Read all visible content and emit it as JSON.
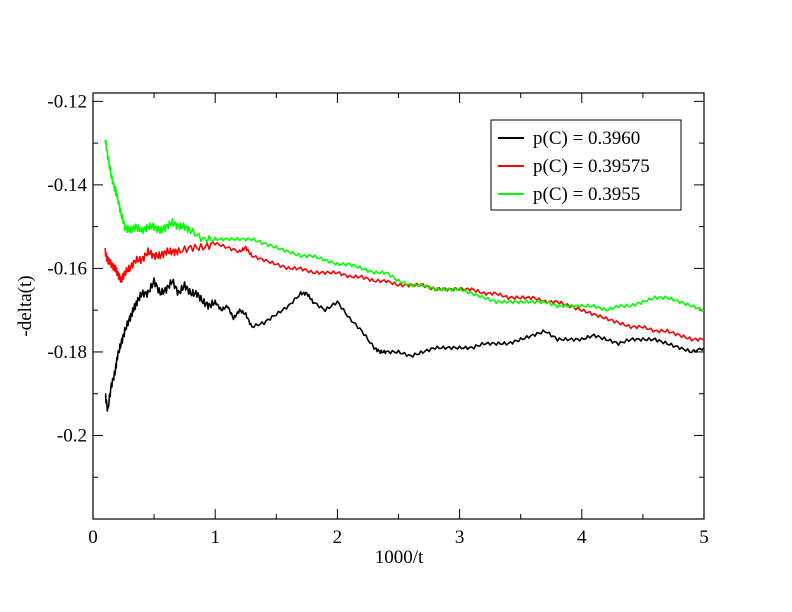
{
  "chart_data": {
    "type": "line",
    "title": "",
    "xlabel": "1000/t",
    "ylabel": "-delta(t)",
    "xlim": [
      0,
      5
    ],
    "ylim": [
      -0.22,
      -0.118
    ],
    "xticks": [
      0,
      1,
      2,
      3,
      4,
      5
    ],
    "xtick_labels": [
      "0",
      "1",
      "2",
      "3",
      "4",
      "5"
    ],
    "yticks": [
      -0.12,
      -0.14,
      -0.16,
      -0.18,
      -0.2
    ],
    "ytick_labels": [
      "-0.12",
      "-0.14",
      "-0.16",
      "-0.18",
      "-0.2"
    ],
    "grid": false,
    "legend_position": "top-right",
    "series": [
      {
        "name": "p(C) = 0.3960",
        "color": "#000000",
        "x": [
          0.1,
          0.12,
          0.15,
          0.18,
          0.2,
          0.23,
          0.26,
          0.3,
          0.33,
          0.36,
          0.4,
          0.45,
          0.5,
          0.55,
          0.6,
          0.65,
          0.7,
          0.75,
          0.8,
          0.85,
          0.9,
          0.95,
          1.0,
          1.05,
          1.1,
          1.15,
          1.2,
          1.25,
          1.3,
          1.4,
          1.5,
          1.6,
          1.7,
          1.75,
          1.8,
          1.9,
          2.0,
          2.1,
          2.2,
          2.3,
          2.35,
          2.4,
          2.5,
          2.6,
          2.7,
          2.8,
          2.9,
          3.0,
          3.1,
          3.2,
          3.3,
          3.4,
          3.5,
          3.6,
          3.7,
          3.8,
          3.9,
          4.0,
          4.1,
          4.2,
          4.3,
          4.4,
          4.5,
          4.6,
          4.7,
          4.8,
          4.9,
          5.0
        ],
        "values": [
          -0.19,
          -0.194,
          -0.188,
          -0.185,
          -0.181,
          -0.178,
          -0.175,
          -0.172,
          -0.17,
          -0.168,
          -0.166,
          -0.166,
          -0.163,
          -0.166,
          -0.165,
          -0.163,
          -0.166,
          -0.164,
          -0.166,
          -0.166,
          -0.168,
          -0.169,
          -0.168,
          -0.17,
          -0.169,
          -0.172,
          -0.17,
          -0.171,
          -0.174,
          -0.173,
          -0.171,
          -0.169,
          -0.166,
          -0.166,
          -0.168,
          -0.17,
          -0.168,
          -0.172,
          -0.175,
          -0.179,
          -0.18,
          -0.18,
          -0.18,
          -0.181,
          -0.18,
          -0.179,
          -0.179,
          -0.179,
          -0.179,
          -0.178,
          -0.178,
          -0.178,
          -0.177,
          -0.176,
          -0.175,
          -0.177,
          -0.177,
          -0.177,
          -0.176,
          -0.177,
          -0.178,
          -0.177,
          -0.177,
          -0.177,
          -0.178,
          -0.179,
          -0.18,
          -0.179
        ]
      },
      {
        "name": "p(C) = 0.39575",
        "color": "#ff0000",
        "x": [
          0.1,
          0.12,
          0.15,
          0.18,
          0.2,
          0.23,
          0.26,
          0.3,
          0.35,
          0.4,
          0.45,
          0.5,
          0.55,
          0.6,
          0.65,
          0.7,
          0.8,
          0.9,
          1.0,
          1.1,
          1.2,
          1.25,
          1.3,
          1.4,
          1.5,
          1.6,
          1.7,
          1.8,
          1.9,
          2.0,
          2.1,
          2.2,
          2.3,
          2.4,
          2.5,
          2.6,
          2.7,
          2.8,
          2.9,
          3.0,
          3.1,
          3.2,
          3.3,
          3.4,
          3.5,
          3.6,
          3.7,
          3.8,
          3.9,
          4.0,
          4.1,
          4.2,
          4.3,
          4.4,
          4.5,
          4.6,
          4.7,
          4.8,
          4.9,
          5.0
        ],
        "values": [
          -0.156,
          -0.158,
          -0.159,
          -0.16,
          -0.161,
          -0.163,
          -0.161,
          -0.16,
          -0.158,
          -0.158,
          -0.156,
          -0.157,
          -0.157,
          -0.156,
          -0.156,
          -0.156,
          -0.155,
          -0.155,
          -0.154,
          -0.155,
          -0.156,
          -0.155,
          -0.157,
          -0.158,
          -0.159,
          -0.16,
          -0.16,
          -0.161,
          -0.161,
          -0.161,
          -0.162,
          -0.162,
          -0.163,
          -0.163,
          -0.164,
          -0.164,
          -0.164,
          -0.165,
          -0.165,
          -0.165,
          -0.165,
          -0.166,
          -0.166,
          -0.167,
          -0.167,
          -0.167,
          -0.168,
          -0.168,
          -0.169,
          -0.17,
          -0.171,
          -0.172,
          -0.173,
          -0.174,
          -0.174,
          -0.175,
          -0.175,
          -0.176,
          -0.177,
          -0.177
        ]
      },
      {
        "name": "p(C) = 0.3955",
        "color": "#00ff00",
        "x": [
          0.1,
          0.12,
          0.15,
          0.18,
          0.2,
          0.23,
          0.26,
          0.3,
          0.35,
          0.4,
          0.45,
          0.5,
          0.55,
          0.6,
          0.65,
          0.7,
          0.75,
          0.8,
          0.9,
          1.0,
          1.1,
          1.2,
          1.3,
          1.4,
          1.5,
          1.6,
          1.7,
          1.8,
          1.9,
          2.0,
          2.1,
          2.2,
          2.3,
          2.4,
          2.5,
          2.6,
          2.7,
          2.8,
          2.9,
          3.0,
          3.1,
          3.2,
          3.3,
          3.4,
          3.5,
          3.6,
          3.7,
          3.8,
          3.9,
          4.0,
          4.1,
          4.2,
          4.3,
          4.4,
          4.5,
          4.6,
          4.7,
          4.8,
          4.9,
          5.0
        ],
        "values": [
          -0.129,
          -0.133,
          -0.138,
          -0.141,
          -0.143,
          -0.147,
          -0.15,
          -0.151,
          -0.15,
          -0.151,
          -0.15,
          -0.15,
          -0.151,
          -0.15,
          -0.149,
          -0.15,
          -0.15,
          -0.151,
          -0.153,
          -0.153,
          -0.153,
          -0.153,
          -0.153,
          -0.154,
          -0.155,
          -0.156,
          -0.157,
          -0.157,
          -0.158,
          -0.159,
          -0.159,
          -0.16,
          -0.161,
          -0.161,
          -0.163,
          -0.164,
          -0.164,
          -0.165,
          -0.165,
          -0.165,
          -0.166,
          -0.167,
          -0.168,
          -0.168,
          -0.168,
          -0.168,
          -0.168,
          -0.169,
          -0.169,
          -0.169,
          -0.169,
          -0.17,
          -0.169,
          -0.169,
          -0.168,
          -0.167,
          -0.167,
          -0.168,
          -0.169,
          -0.17
        ]
      }
    ]
  }
}
